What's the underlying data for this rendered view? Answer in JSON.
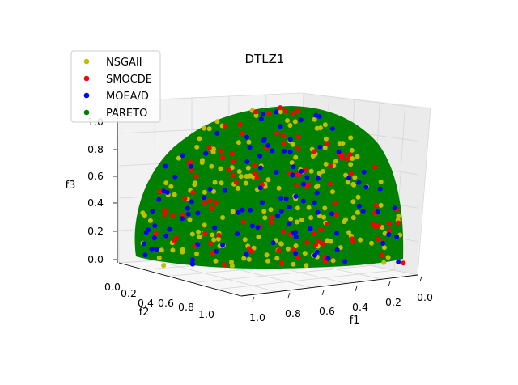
{
  "chart_data": {
    "type": "scatter",
    "projection": "3d",
    "title": "DTLZ1",
    "xlabel": "f1",
    "ylabel": "f2",
    "zlabel": "f3",
    "x_ticks": [
      "0.0",
      "0.2",
      "0.4",
      "0.6",
      "0.8",
      "1.0"
    ],
    "y_ticks": [
      "0.0",
      "0.2",
      "0.4",
      "0.6",
      "0.8",
      "1.0"
    ],
    "z_ticks": [
      "0.0",
      "0.2",
      "0.4",
      "0.6",
      "0.8",
      "1.0"
    ],
    "xlim": [
      0,
      1
    ],
    "ylim": [
      0,
      1
    ],
    "zlim": [
      0,
      1
    ],
    "grid": true,
    "legend_position": "upper-left",
    "colors": {
      "NSGAII": "#bfbf00",
      "SMOCDE": "#ff0000",
      "MOEA/D": "#0000ff",
      "PARETO": "#008000"
    },
    "series": [
      {
        "name": "NSGAII",
        "count": 180
      },
      {
        "name": "SMOCDE",
        "count": 110
      },
      {
        "name": "MOEA/D",
        "count": 110
      },
      {
        "name": "PARETO",
        "surface": "x^2 + y^2 + z^2 = 1, x,y,z >= 0"
      }
    ]
  }
}
